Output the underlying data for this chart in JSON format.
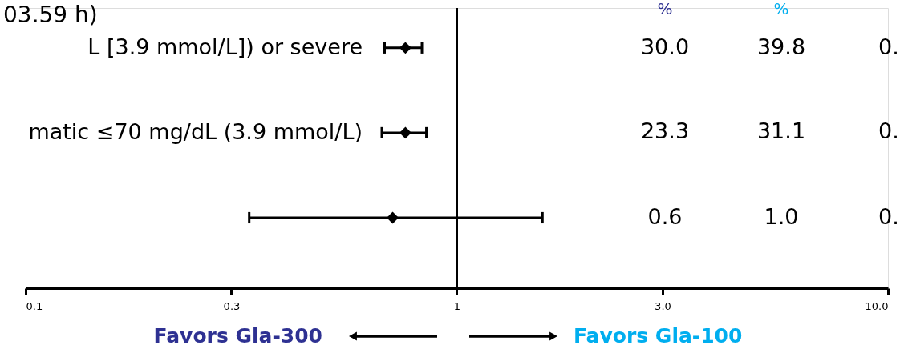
{
  "chart_data": {
    "type": "scatter",
    "orientation": "horizontal",
    "marker": "diamond",
    "log": "x",
    "categories": [
      "L [3.9 mmol/L]) or severe",
      "matic ≤70 mg/dL (3.9 mmol/L)",
      null
    ],
    "series": [
      {
        "color": "#000000",
        "values": [
          0.76,
          0.76,
          0.71
        ],
        "errors": [
          [
            0.68,
            0.83
          ],
          [
            0.67,
            0.85
          ],
          [
            0.33,
            1.58
          ]
        ]
      }
    ],
    "xlim": [
      0.1,
      10
    ],
    "xticks": [
      0.1,
      0.3,
      1,
      {
        "value": 3,
        "label": "3.0"
      },
      {
        "value": 10,
        "label": "10.0"
      }
    ],
    "ref_lines": [
      {
        "axis": "x",
        "value": 1,
        "color": "#000000"
      }
    ],
    "grid": false,
    "annotations": [
      "03.59 h)",
      "%",
      "%",
      "30.0",
      "39.8",
      "0.",
      "23.3",
      "31.1",
      "0.",
      "0.6",
      "1.0",
      "0.",
      "Favors Gla-300",
      "Favors Gla-100"
    ]
  }
}
